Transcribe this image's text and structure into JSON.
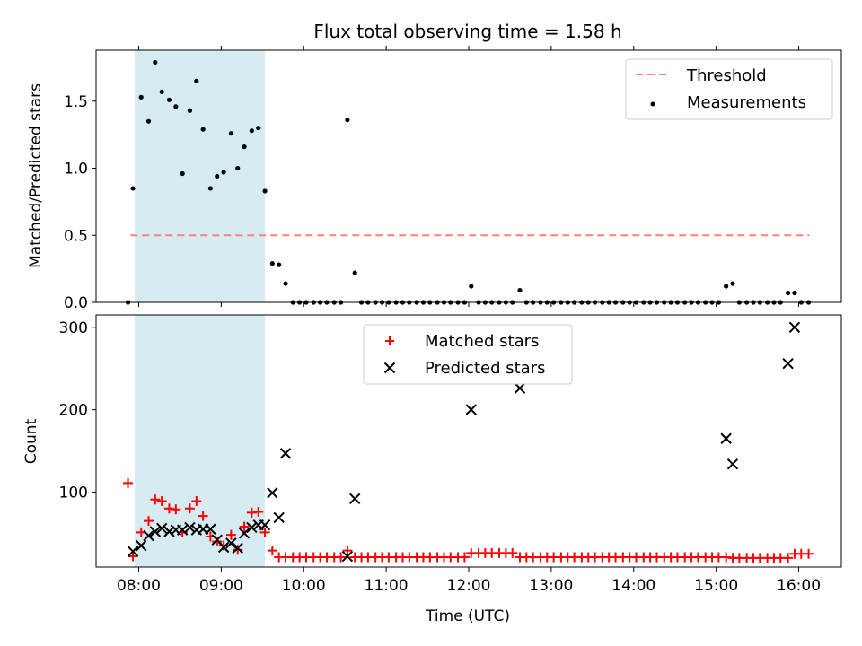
{
  "chart_data": [
    {
      "type": "scatter",
      "title": "Flux total observing time = 1.58 h",
      "xlabel": "",
      "ylabel": "Matched/Predicted stars",
      "x_ticks": [
        "08:00",
        "09:00",
        "10:00",
        "11:00",
        "12:00",
        "13:00",
        "14:00",
        "15:00",
        "16:00"
      ],
      "x_tick_values": [
        8,
        9,
        10,
        11,
        12,
        13,
        14,
        15,
        16
      ],
      "xlim": [
        7.4833,
        16.5167
      ],
      "ylim": [
        0,
        1.88
      ],
      "y_ticks": [
        0.0,
        0.5,
        1.0,
        1.5
      ],
      "y_tick_labels": [
        "0.0",
        "0.5",
        "1.0",
        "1.5"
      ],
      "shaded_interval": [
        7.95,
        9.53
      ],
      "shaded_color": "#add8e6",
      "threshold": {
        "name": "Threshold",
        "value": 0.5,
        "x_range": [
          7.9,
          16.13
        ],
        "color": "#ff7f7f"
      },
      "legend": [
        "Threshold",
        "Measurements"
      ],
      "legend_position": "top-right",
      "series": [
        {
          "name": "Measurements",
          "color": "#000000",
          "x": [
            7.87,
            7.93,
            8.03,
            8.12,
            8.2,
            8.28,
            8.37,
            8.45,
            8.53,
            8.62,
            8.7,
            8.78,
            8.87,
            8.95,
            9.03,
            9.12,
            9.2,
            9.28,
            9.37,
            9.45,
            9.53,
            9.62,
            9.7,
            9.78,
            9.87,
            9.95,
            10.03,
            10.12,
            10.2,
            10.28,
            10.37,
            10.45,
            10.53,
            10.62,
            10.7,
            10.78,
            10.87,
            10.95,
            11.03,
            11.12,
            11.2,
            11.28,
            11.37,
            11.45,
            11.53,
            11.62,
            11.7,
            11.78,
            11.87,
            11.95,
            12.03,
            12.12,
            12.2,
            12.28,
            12.37,
            12.45,
            12.53,
            12.62,
            12.7,
            12.78,
            12.87,
            12.95,
            13.03,
            13.12,
            13.2,
            13.28,
            13.37,
            13.45,
            13.53,
            13.62,
            13.7,
            13.78,
            13.87,
            13.95,
            14.03,
            14.12,
            14.2,
            14.28,
            14.37,
            14.45,
            14.53,
            14.62,
            14.7,
            14.78,
            14.87,
            14.95,
            15.03,
            15.12,
            15.2,
            15.28,
            15.37,
            15.45,
            15.53,
            15.62,
            15.7,
            15.78,
            15.87,
            15.95,
            16.03,
            16.12
          ],
          "y": [
            0.0,
            0.85,
            1.53,
            1.35,
            1.79,
            1.57,
            1.51,
            1.46,
            0.96,
            1.43,
            1.65,
            1.29,
            0.85,
            0.94,
            0.97,
            1.26,
            1.0,
            1.16,
            1.28,
            1.3,
            0.83,
            0.29,
            0.28,
            0.14,
            0.0,
            0.0,
            0.0,
            0.0,
            0.0,
            0.0,
            0.0,
            0.0,
            1.36,
            0.22,
            0.0,
            0.0,
            0.0,
            0.0,
            0.0,
            0.0,
            0.0,
            0.0,
            0.0,
            0.0,
            0.0,
            0.0,
            0.0,
            0.0,
            0.0,
            0.0,
            0.12,
            0.0,
            0.0,
            0.0,
            0.0,
            0.0,
            0.0,
            0.09,
            0.0,
            0.0,
            0.0,
            0.0,
            0.0,
            0.0,
            0.0,
            0.0,
            0.0,
            0.0,
            0.0,
            0.0,
            0.0,
            0.0,
            0.0,
            0.0,
            0.0,
            0.0,
            0.0,
            0.0,
            0.0,
            0.0,
            0.0,
            0.0,
            0.0,
            0.0,
            0.0,
            0.0,
            0.0,
            0.12,
            0.14,
            0.0,
            0.0,
            0.0,
            0.0,
            0.0,
            0.0,
            0.0,
            0.07,
            0.07,
            0.0,
            0.0
          ]
        }
      ]
    },
    {
      "type": "scatter",
      "title": "",
      "xlabel": "Time (UTC)",
      "ylabel": "Count",
      "x_ticks": [
        "08:00",
        "09:00",
        "10:00",
        "11:00",
        "12:00",
        "13:00",
        "14:00",
        "15:00",
        "16:00"
      ],
      "x_tick_values": [
        8,
        9,
        10,
        11,
        12,
        13,
        14,
        15,
        16
      ],
      "xlim": [
        7.4833,
        16.5167
      ],
      "ylim": [
        9,
        315
      ],
      "y_ticks": [
        100,
        200,
        300
      ],
      "y_tick_labels": [
        "100",
        "200",
        "300"
      ],
      "shaded_interval": [
        7.95,
        9.53
      ],
      "shaded_color": "#add8e6",
      "legend": [
        "Matched stars",
        "Predicted stars"
      ],
      "legend_position": "top-center",
      "series": [
        {
          "name": "Matched stars",
          "marker": "+",
          "color": "#ff0000",
          "x": [
            7.87,
            7.93,
            8.03,
            8.12,
            8.2,
            8.28,
            8.37,
            8.45,
            8.53,
            8.62,
            8.7,
            8.78,
            8.87,
            8.95,
            9.03,
            9.12,
            9.2,
            9.28,
            9.37,
            9.45,
            9.53,
            9.62,
            9.7,
            9.78,
            9.87,
            9.95,
            10.03,
            10.12,
            10.2,
            10.28,
            10.37,
            10.45,
            10.53,
            10.62,
            10.7,
            10.78,
            10.87,
            10.95,
            11.03,
            11.12,
            11.2,
            11.28,
            11.37,
            11.45,
            11.53,
            11.62,
            11.7,
            11.78,
            11.87,
            11.95,
            12.03,
            12.12,
            12.2,
            12.28,
            12.37,
            12.45,
            12.53,
            12.62,
            12.7,
            12.78,
            12.87,
            12.95,
            13.03,
            13.12,
            13.2,
            13.28,
            13.37,
            13.45,
            13.53,
            13.62,
            13.7,
            13.78,
            13.87,
            13.95,
            14.03,
            14.12,
            14.2,
            14.28,
            14.37,
            14.45,
            14.53,
            14.62,
            14.7,
            14.78,
            14.87,
            14.95,
            15.03,
            15.12,
            15.2,
            15.28,
            15.37,
            15.45,
            15.53,
            15.62,
            15.7,
            15.78,
            15.87,
            15.95,
            16.03,
            16.12
          ],
          "y": [
            111,
            22,
            51,
            65,
            91,
            89,
            80,
            79,
            51,
            80,
            89,
            71,
            46,
            40,
            35,
            48,
            30,
            58,
            75,
            76,
            51,
            29,
            21,
            21,
            21,
            21,
            21,
            21,
            21,
            21,
            21,
            21,
            29,
            21,
            21,
            21,
            21,
            21,
            21,
            21,
            21,
            21,
            21,
            21,
            21,
            21,
            21,
            21,
            21,
            21,
            26,
            26,
            26,
            26,
            26,
            26,
            26,
            21,
            21,
            21,
            21,
            21,
            21,
            21,
            21,
            21,
            21,
            21,
            21,
            21,
            21,
            21,
            21,
            21,
            21,
            21,
            21,
            21,
            21,
            21,
            21,
            21,
            21,
            21,
            21,
            21,
            21,
            21,
            20,
            20,
            20,
            20,
            20,
            20,
            20,
            20,
            20,
            25,
            25,
            25
          ]
        },
        {
          "name": "Predicted stars",
          "marker": "x",
          "color": "#000000",
          "x": [
            7.93,
            8.03,
            8.12,
            8.2,
            8.28,
            8.37,
            8.45,
            8.53,
            8.62,
            8.7,
            8.78,
            8.87,
            8.95,
            9.03,
            9.12,
            9.2,
            9.28,
            9.37,
            9.45,
            9.53,
            9.62,
            9.7,
            9.78,
            10.53,
            10.62,
            12.03,
            12.62,
            15.12,
            15.2,
            15.87,
            15.95
          ],
          "y": [
            28,
            35,
            47,
            52,
            56,
            52,
            54,
            54,
            57,
            54,
            55,
            55,
            42,
            33,
            38,
            32,
            50,
            57,
            60,
            60,
            99,
            69,
            147,
            22,
            92,
            200,
            226,
            165,
            134,
            256,
            300
          ]
        }
      ]
    }
  ]
}
